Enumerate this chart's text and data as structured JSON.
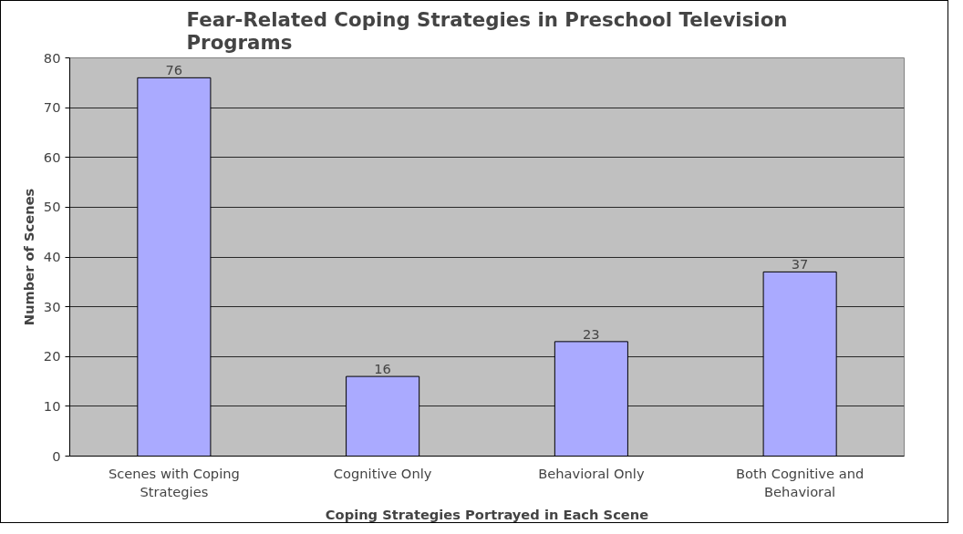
{
  "chart_data": {
    "type": "bar",
    "title": "Fear-Related Coping Strategies in Preschool Television Programs",
    "xlabel": "Coping Strategies Portrayed in Each Scene",
    "ylabel": "Number of Scenes",
    "categories": [
      "Scenes with Coping Strategies",
      "Cognitive Only",
      "Behavioral Only",
      "Both Cognitive and Behavioral"
    ],
    "values": [
      76,
      16,
      23,
      37
    ],
    "color": "#aaaaff",
    "ylim": [
      0,
      80
    ],
    "yticks": [
      0,
      10,
      20,
      30,
      40,
      50,
      60,
      70,
      80
    ],
    "grid": "y",
    "data_labels": true
  }
}
